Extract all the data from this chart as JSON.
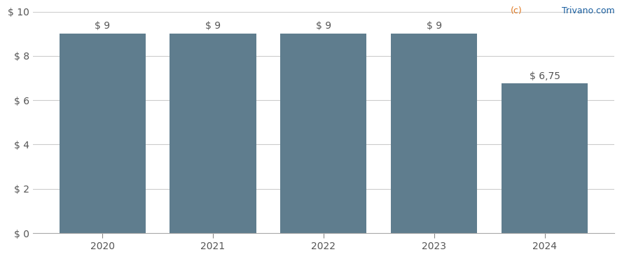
{
  "categories": [
    "2020",
    "2021",
    "2022",
    "2023",
    "2024"
  ],
  "values": [
    9.0,
    9.0,
    9.0,
    9.0,
    6.75
  ],
  "labels": [
    "$ 9",
    "$ 9",
    "$ 9",
    "$ 9",
    "$ 6,75"
  ],
  "bar_color": "#5f7d8e",
  "background_color": "#ffffff",
  "ylim": [
    0,
    10
  ],
  "yticks": [
    0,
    2,
    4,
    6,
    8,
    10
  ],
  "ytick_labels": [
    "$ 0",
    "$ 2",
    "$ 4",
    "$ 6",
    "$ 8",
    "$ 10"
  ],
  "grid_color": "#cccccc",
  "label_fontsize": 10,
  "tick_fontsize": 10,
  "watermark_c": "(c)",
  "watermark_rest": " Trivano.com",
  "watermark_color_c": "#e07820",
  "watermark_color_rest": "#1a5fa0",
  "bar_width": 0.78
}
